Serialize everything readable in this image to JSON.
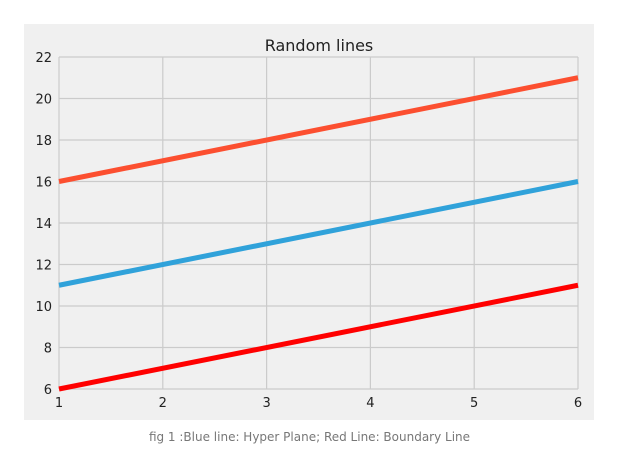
{
  "chart_data": {
    "type": "line",
    "title": "Random lines",
    "xlim": [
      1,
      6
    ],
    "ylim": [
      6,
      22
    ],
    "x_ticks": [
      "1",
      "2",
      "3",
      "4",
      "5",
      "6"
    ],
    "y_ticks": [
      "6",
      "8",
      "10",
      "12",
      "14",
      "16",
      "18",
      "20",
      "22"
    ],
    "grid": true,
    "series": [
      {
        "color": "#fc4f30",
        "x": [
          1,
          6
        ],
        "y": [
          16,
          21
        ]
      },
      {
        "color": "#30a2da",
        "x": [
          1,
          6
        ],
        "y": [
          11,
          16
        ]
      },
      {
        "color": "#ff0000",
        "x": [
          1,
          6
        ],
        "y": [
          6,
          11
        ]
      }
    ]
  },
  "caption": "fig 1 :Blue line: Hyper Plane; Red Line: Boundary Line"
}
